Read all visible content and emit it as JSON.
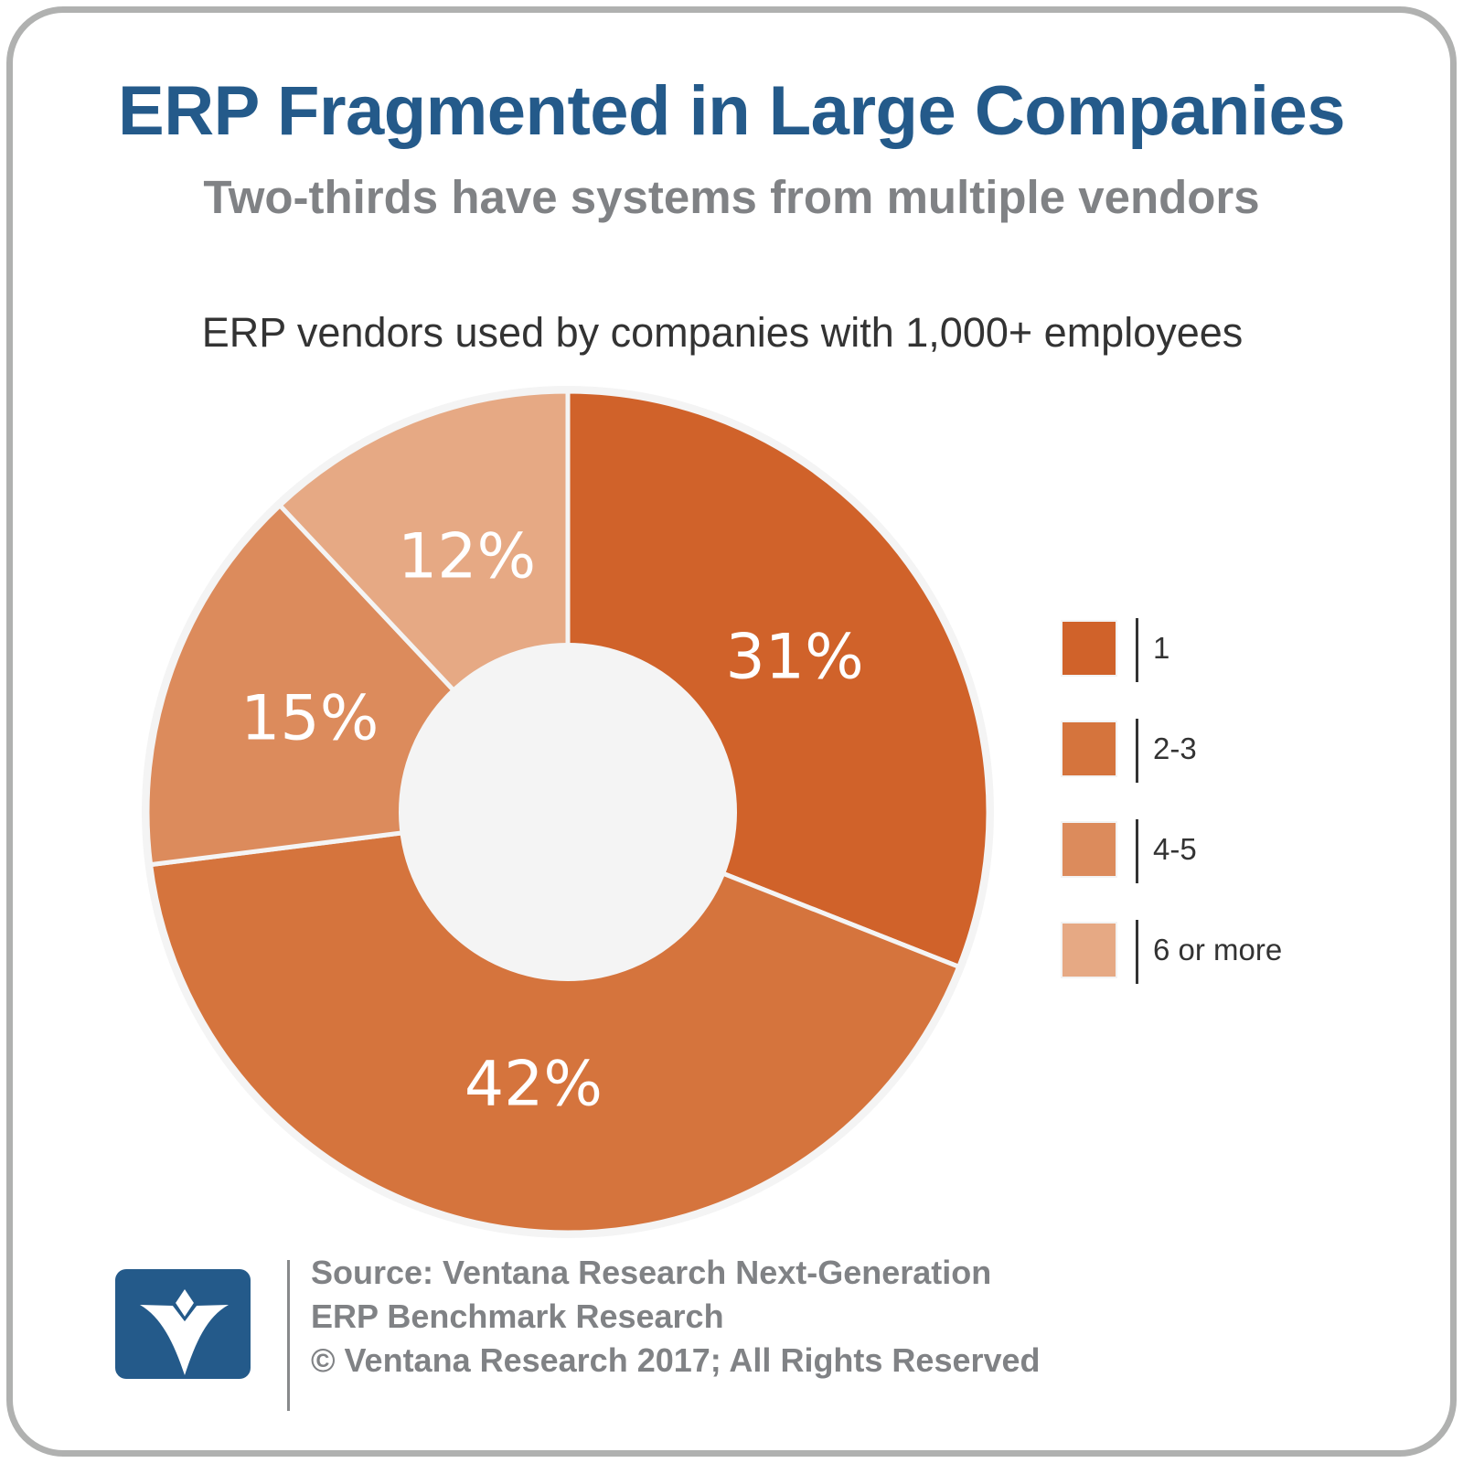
{
  "header": {
    "title": "ERP Fragmented in Large Companies",
    "subtitle": "Two-thirds have systems from multiple vendors"
  },
  "chart_heading": "ERP vendors used by companies with 1,000+ employees",
  "chart_data": {
    "type": "pie",
    "variant": "donut",
    "title": "ERP vendors used by companies with 1,000+ employees",
    "categories": [
      "1",
      "2-3",
      "4-5",
      "6 or more"
    ],
    "values": [
      31,
      42,
      15,
      12
    ],
    "labels": [
      "31%",
      "42%",
      "15%",
      "12%"
    ],
    "colors": [
      "#d0622a",
      "#d5743d",
      "#dc8b5c",
      "#e6a984"
    ],
    "start_angle_deg": 0,
    "direction": "clockwise",
    "legend_position": "right",
    "center_color": "#f4f4f4"
  },
  "legend": {
    "items": [
      {
        "label": "1",
        "color": "#d0622a"
      },
      {
        "label": "2-3",
        "color": "#d5743d"
      },
      {
        "label": "4-5",
        "color": "#dc8b5c"
      },
      {
        "label": "6 or more",
        "color": "#e6a984"
      }
    ]
  },
  "footer": {
    "logo": "ventana-v-logo-icon",
    "lines": [
      "Source: Ventana Research Next-Generation",
      "ERP Benchmark Research",
      "© Ventana Research 2017; All Rights Reserved"
    ]
  }
}
